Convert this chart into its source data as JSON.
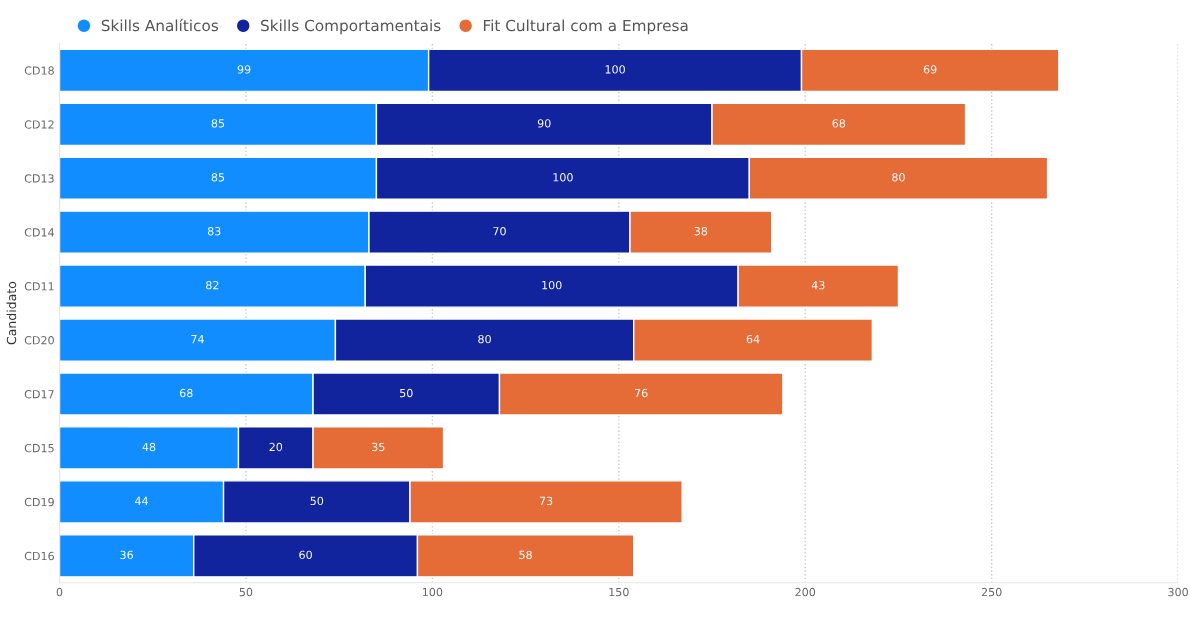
{
  "chart_data": {
    "type": "bar",
    "orientation": "horizontal",
    "stacked": true,
    "ylabel": "Candidato",
    "categories": [
      "CD18",
      "CD12",
      "CD13",
      "CD14",
      "CD11",
      "CD20",
      "CD17",
      "CD15",
      "CD19",
      "CD16"
    ],
    "series": [
      {
        "name": "Skills Analíticos",
        "color": "#118dff",
        "values": [
          99,
          85,
          85,
          83,
          82,
          74,
          68,
          48,
          44,
          36
        ]
      },
      {
        "name": "Skills Comportamentais",
        "color": "#12239e",
        "values": [
          100,
          90,
          100,
          70,
          100,
          80,
          50,
          20,
          50,
          60
        ]
      },
      {
        "name": "Fit Cultural com a Empresa",
        "color": "#e66c37",
        "values": [
          69,
          68,
          80,
          38,
          43,
          64,
          76,
          35,
          73,
          58
        ]
      }
    ],
    "xlim": [
      0,
      300
    ],
    "xticks": [
      0,
      50,
      100,
      150,
      200,
      250,
      300
    ],
    "grid": "x",
    "legend": "top left",
    "data_labels": true
  }
}
